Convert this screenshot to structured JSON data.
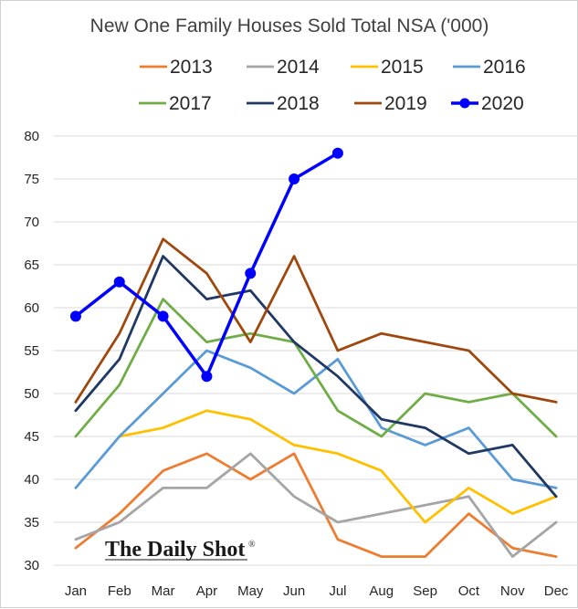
{
  "chart_data": {
    "type": "line",
    "title": "New One Family Houses Sold Total NSA ('000)",
    "xlabel": "",
    "ylabel": "",
    "categories": [
      "Jan",
      "Feb",
      "Mar",
      "Apr",
      "May",
      "Jun",
      "Jul",
      "Aug",
      "Sep",
      "Oct",
      "Nov",
      "Dec"
    ],
    "ylim": [
      30,
      80
    ],
    "yticks": [
      30,
      35,
      40,
      45,
      50,
      55,
      60,
      65,
      70,
      75,
      80
    ],
    "grid": "horizontal",
    "legend_position": "top",
    "series": [
      {
        "name": "2013",
        "color": "#ED7D31",
        "markers": false,
        "values": [
          32,
          36,
          41,
          43,
          40,
          43,
          33,
          31,
          31,
          36,
          32,
          31
        ]
      },
      {
        "name": "2014",
        "color": "#A5A5A5",
        "markers": false,
        "values": [
          33,
          35,
          39,
          39,
          43,
          38,
          35,
          36,
          37,
          38,
          31,
          35
        ]
      },
      {
        "name": "2015",
        "color": "#FFC000",
        "markers": false,
        "values": [
          null,
          45,
          46,
          48,
          47,
          44,
          43,
          41,
          35,
          39,
          36,
          38
        ]
      },
      {
        "name": "2016",
        "color": "#5B9BD5",
        "markers": false,
        "values": [
          39,
          45,
          50,
          55,
          53,
          50,
          54,
          46,
          44,
          46,
          40,
          39
        ]
      },
      {
        "name": "2017",
        "color": "#70AD47",
        "markers": false,
        "values": [
          45,
          51,
          61,
          56,
          57,
          56,
          48,
          45,
          50,
          49,
          50,
          45
        ]
      },
      {
        "name": "2018",
        "color": "#1F3864",
        "markers": false,
        "values": [
          48,
          54,
          66,
          61,
          62,
          56,
          52,
          47,
          46,
          43,
          44,
          38
        ]
      },
      {
        "name": "2019",
        "color": "#9E480E",
        "markers": false,
        "values": [
          49,
          57,
          68,
          64,
          56,
          66,
          55,
          57,
          56,
          55,
          50,
          49
        ]
      },
      {
        "name": "2020",
        "color": "#0000FF",
        "markers": true,
        "values": [
          59,
          63,
          59,
          52,
          64,
          75,
          78,
          null,
          null,
          null,
          null,
          null
        ]
      }
    ]
  },
  "watermark": {
    "text": "The Daily Shot",
    "mark": "®"
  }
}
